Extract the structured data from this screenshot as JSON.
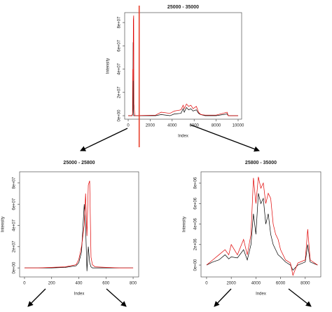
{
  "chart_data": [
    {
      "type": "line",
      "title": "25000  -  35000",
      "x_label": "Index",
      "y_label": "Intensity",
      "x": [
        0,
        350,
        400,
        420,
        450,
        470,
        500,
        520,
        600,
        2500,
        3000,
        3800,
        4200,
        4800,
        5000,
        5100,
        5300,
        5500,
        5700,
        5900,
        6200,
        6400,
        6600,
        7000,
        8000,
        9000,
        9100,
        10000
      ],
      "series": [
        {
          "color": "#000000",
          "values": [
            0,
            0,
            1000000,
            5000000,
            63000000,
            5000000,
            0,
            0,
            0,
            0,
            1000000,
            0,
            1500000,
            2000000,
            6000000,
            3000000,
            7000000,
            5000000,
            6000000,
            4000000,
            5000000,
            2000000,
            1000000,
            0,
            0,
            1500000,
            0,
            0
          ]
        },
        {
          "color": "#e00000",
          "values": [
            0,
            0,
            2000000,
            40000000,
            30000000,
            82000000,
            86000000,
            10000000,
            0,
            500000,
            3000000,
            2000000,
            4000000,
            5000000,
            9000000,
            6000000,
            10000000,
            8000000,
            9000000,
            6000000,
            8000000,
            3000000,
            1000000,
            500000,
            500000,
            3000000,
            0,
            0
          ]
        }
      ],
      "vline": 1000,
      "vline_color": "#e8412c",
      "xlim": [
        -320,
        10320
      ],
      "xticks": [
        0,
        2000,
        4000,
        6000,
        8000,
        10000
      ],
      "ylim": [
        -3000000,
        88500000
      ],
      "yticks": [
        {
          "value": 0,
          "label": "0e+00"
        },
        {
          "value": 20000000,
          "label": "2e+07"
        },
        {
          "value": 40000000,
          "label": "4e+07"
        },
        {
          "value": 60000000,
          "label": "6e+07"
        },
        {
          "value": 80000000,
          "label": "8e+07"
        }
      ]
    },
    {
      "type": "line",
      "title": "25000  -  25800",
      "x_label": "Index",
      "y_label": "Intensity",
      "x": [
        0,
        100,
        200,
        300,
        380,
        400,
        420,
        440,
        450,
        460,
        470,
        480,
        490,
        500,
        520,
        600,
        700,
        800
      ],
      "series": [
        {
          "color": "#000000",
          "values": [
            0,
            0,
            0,
            500000,
            2000000,
            5000000,
            15000000,
            60000000,
            40000000,
            -3000000,
            20000000,
            5000000,
            1000000,
            0,
            0,
            0,
            0,
            0
          ]
        },
        {
          "color": "#e00000",
          "values": [
            0,
            0,
            500000,
            1000000,
            3000000,
            8000000,
            20000000,
            40000000,
            70000000,
            30000000,
            78000000,
            82000000,
            10000000,
            3000000,
            1000000,
            500000,
            0,
            0
          ]
        }
      ],
      "xlim": [
        -36,
        841
      ],
      "xticks": [
        0,
        200,
        400,
        600,
        800
      ],
      "ylim": [
        -8500000,
        90500000
      ],
      "yticks": [
        {
          "value": 0,
          "label": "0e+00"
        },
        {
          "value": 20000000,
          "label": "2e+07"
        },
        {
          "value": 40000000,
          "label": "4e+07"
        },
        {
          "value": 60000000,
          "label": "6e+07"
        },
        {
          "value": 80000000,
          "label": "8e+07"
        }
      ]
    },
    {
      "type": "line",
      "title": "25800  -  35000",
      "x_label": "Index",
      "y_label": "Intensity",
      "x": [
        0,
        500,
        1000,
        1500,
        1800,
        2000,
        2500,
        3000,
        3300,
        3600,
        3800,
        4000,
        4200,
        4400,
        4600,
        4800,
        5000,
        5200,
        5400,
        5600,
        5800,
        6000,
        6400,
        6800,
        7000,
        7400,
        8000,
        8200,
        8400,
        9000
      ],
      "series": [
        {
          "color": "#000000",
          "values": [
            0,
            300000,
            500000,
            1000000,
            600000,
            800000,
            700000,
            1500000,
            500000,
            2000000,
            5000000,
            3000000,
            7000000,
            6000000,
            6500000,
            4000000,
            5000000,
            3000000,
            2000000,
            1500000,
            1000000,
            800000,
            300000,
            0,
            -500000,
            0,
            300000,
            2000000,
            300000,
            0
          ]
        },
        {
          "color": "#e00000",
          "values": [
            0,
            500000,
            1000000,
            1500000,
            1000000,
            2000000,
            1000000,
            2500000,
            1000000,
            3000000,
            8500000,
            6000000,
            8600000,
            7500000,
            8000000,
            6000000,
            7000000,
            6500000,
            4000000,
            3000000,
            2500000,
            1500000,
            500000,
            200000,
            -1000000,
            200000,
            500000,
            3500000,
            500000,
            0
          ]
        }
      ],
      "xlim": [
        -450,
        9260
      ],
      "xticks": [
        0,
        2000,
        4000,
        6000,
        8000
      ],
      "ylim": [
        -1160000,
        9100000
      ],
      "yticks": [
        {
          "value": 0,
          "label": "0e+00"
        },
        {
          "value": 2000000,
          "label": "2e+06"
        },
        {
          "value": 4000000,
          "label": "4e+06"
        },
        {
          "value": 6000000,
          "label": "6e+06"
        },
        {
          "value": 8000000,
          "label": "8e+06"
        }
      ]
    }
  ]
}
